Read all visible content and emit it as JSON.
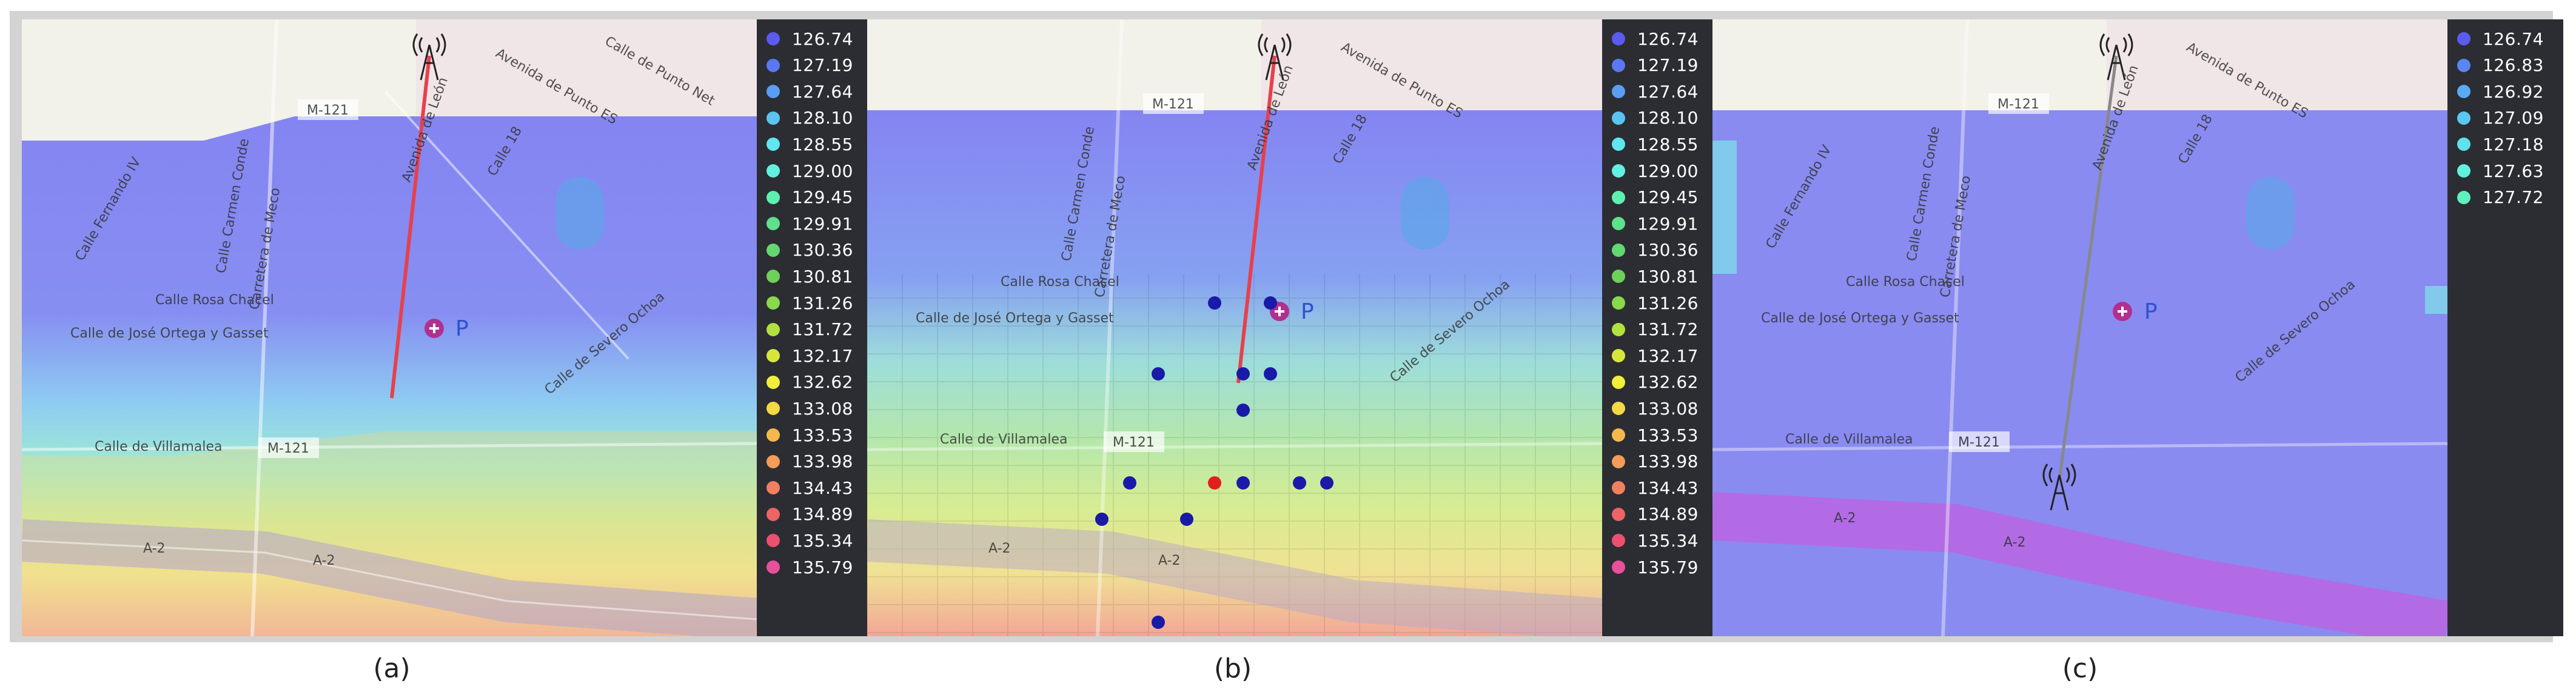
{
  "panels": [
    {
      "id": "a",
      "caption": "(a)",
      "legend": {
        "values": [
          "126.74",
          "127.19",
          "127.64",
          "128.10",
          "128.55",
          "129.00",
          "129.45",
          "129.91",
          "130.36",
          "130.81",
          "131.26",
          "131.72",
          "132.17",
          "132.62",
          "133.08",
          "133.53",
          "133.98",
          "134.43",
          "134.89",
          "135.34",
          "135.79"
        ],
        "colors": [
          "#5b5bf0",
          "#5a78f2",
          "#5a9ef4",
          "#5ac3f0",
          "#5fe6ee",
          "#62f0e0",
          "#5ef0b0",
          "#5ee08c",
          "#62d873",
          "#6ed05a",
          "#8ad84c",
          "#b2e040",
          "#d8e63c",
          "#f2ee3c",
          "#f4d844",
          "#f6b84c",
          "#f49c58",
          "#f08060",
          "#ec6464",
          "#ec5070",
          "#e8509a"
        ]
      },
      "map_labels": [
        "M-121",
        "Calle de Villamalea",
        "M-121",
        "A-2",
        "A-2",
        "Calle Rosa Chacel",
        "Calle de José Ortega y Gasset",
        "Carretera de Meco",
        "Calle Carmen Conde",
        "Calle Fernando IV",
        "Avenida de León",
        "Calle 18",
        "Calle de Severo Ochoa",
        "Avenida de Punto ES",
        "Calle de Punto Net"
      ],
      "markers": {
        "tower": "radio-tower-icon",
        "hospital": "hospital-icon",
        "parking": "P"
      }
    },
    {
      "id": "b",
      "caption": "(b)",
      "legend": {
        "values": [
          "126.74",
          "127.19",
          "127.64",
          "128.10",
          "128.55",
          "129.00",
          "129.45",
          "129.91",
          "130.36",
          "130.81",
          "131.26",
          "131.72",
          "132.17",
          "132.62",
          "133.08",
          "133.53",
          "133.98",
          "134.43",
          "134.89",
          "135.34",
          "135.79"
        ],
        "colors": [
          "#5b5bf0",
          "#5a78f2",
          "#5a9ef4",
          "#5ac3f0",
          "#5fe6ee",
          "#62f0e0",
          "#5ef0b0",
          "#5ee08c",
          "#62d873",
          "#6ed05a",
          "#8ad84c",
          "#b2e040",
          "#d8e63c",
          "#f2ee3c",
          "#f4d844",
          "#f6b84c",
          "#f49c58",
          "#f08060",
          "#ec6464",
          "#ec5070",
          "#e8509a"
        ]
      },
      "map_labels": [
        "M-121",
        "Calle de Villamalea",
        "M-121",
        "A-2",
        "A-2",
        "Calle Rosa Chacel",
        "Calle de José Ortega y Gasset",
        "Carretera de Meco",
        "Calle Carmen Conde",
        "Avenida de León",
        "Calle 18",
        "Calle de Severo Ochoa",
        "Avenida de Punto ES"
      ],
      "markers": {
        "tower": "radio-tower-icon",
        "hospital": "hospital-icon",
        "parking": "P"
      }
    },
    {
      "id": "c",
      "caption": "(c)",
      "legend": {
        "values": [
          "126.74",
          "126.83",
          "126.92",
          "127.09",
          "127.18",
          "127.63",
          "127.72"
        ],
        "colors": [
          "#5b5bf0",
          "#5a86f2",
          "#5aaaf4",
          "#5ac8f0",
          "#5fe2ee",
          "#62f0dc",
          "#60f0bc"
        ]
      },
      "map_labels": [
        "M-121",
        "Calle de Villamalea",
        "M-121",
        "A-2",
        "A-2",
        "Calle Rosa Chacel",
        "Calle de José Ortega y Gasset",
        "Carretera de Meco",
        "Calle Carmen Conde",
        "Calle Fernando IV",
        "Avenida de León",
        "Calle 18",
        "Calle de Severo Ochoa",
        "Avenida de Punto ES"
      ],
      "markers": {
        "tower": "radio-tower-icon",
        "hospital": "hospital-icon",
        "parking": "P"
      }
    }
  ]
}
